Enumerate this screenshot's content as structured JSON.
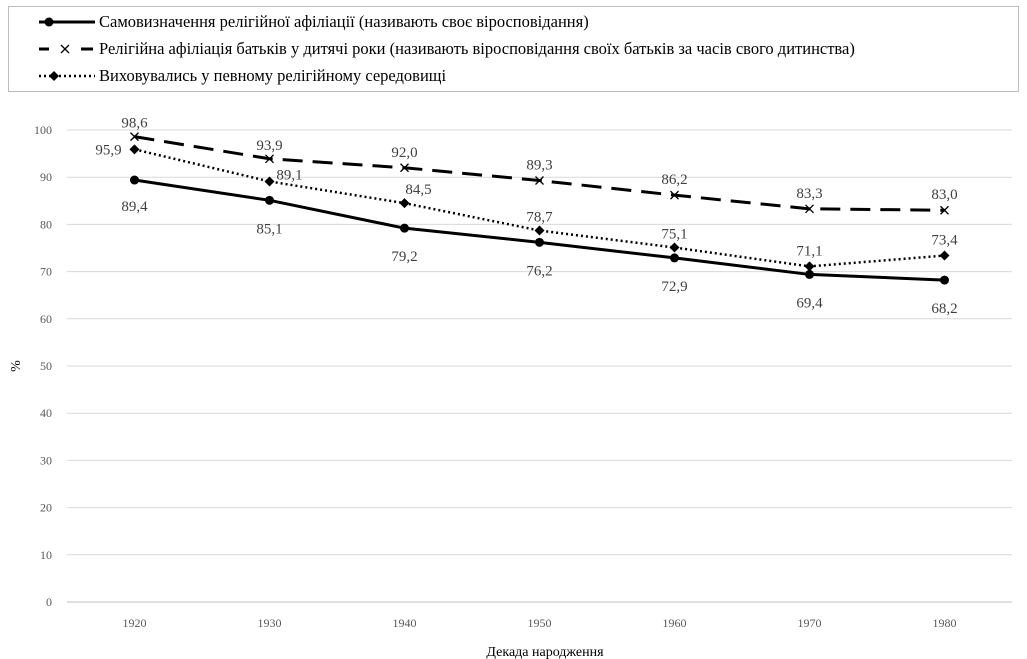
{
  "chart_data": {
    "type": "line",
    "title": "",
    "xlabel": "Декада народження",
    "ylabel": "%",
    "categories": [
      "1920",
      "1930",
      "1940",
      "1950",
      "1960",
      "1970",
      "1980"
    ],
    "ylim": [
      0,
      100
    ],
    "yticks": [
      "0",
      "10",
      "20",
      "30",
      "40",
      "50",
      "60",
      "70",
      "80",
      "90",
      "100"
    ],
    "grid": true,
    "legend_position": "top",
    "series": [
      {
        "name": "Самовизначення релігійної афіліації (називають своє віросповідання)",
        "values": [
          89.4,
          85.1,
          79.2,
          76.2,
          72.9,
          69.4,
          68.2
        ],
        "labels": [
          "89,4",
          "85,1",
          "79,2",
          "76,2",
          "72,9",
          "69,4",
          "68,2"
        ],
        "style": "solid",
        "marker": "circle",
        "color": "#000000"
      },
      {
        "name": "Релігійна афіліація батьків у дитячі роки (називають  віросповідання своїх батьків за часів свого дитинства)",
        "values": [
          98.6,
          93.9,
          92.0,
          89.3,
          86.2,
          83.3,
          83.0
        ],
        "labels": [
          "98,6",
          "93,9",
          "92,0",
          "89,3",
          "86,2",
          "83,3",
          "83,0"
        ],
        "style": "dashed",
        "marker": "x",
        "color": "#000000"
      },
      {
        "name": "Виховувались у певному релігійному середовищі",
        "values": [
          95.9,
          89.1,
          84.5,
          78.7,
          75.1,
          71.1,
          73.4
        ],
        "labels": [
          "95,9",
          "89,1",
          "84,5",
          "78,7",
          "75,1",
          "71,1",
          "73,4"
        ],
        "style": "dotted",
        "marker": "diamond",
        "color": "#000000"
      }
    ]
  }
}
